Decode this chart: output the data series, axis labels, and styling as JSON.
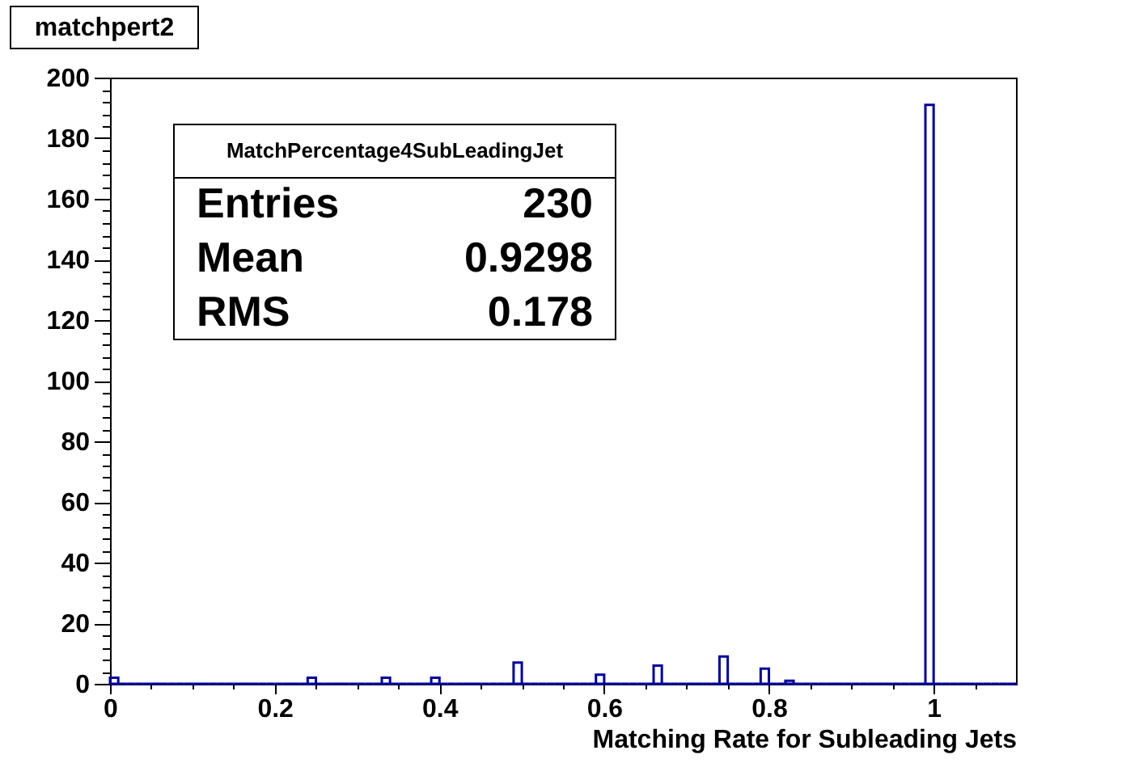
{
  "chart_data": {
    "type": "histogram",
    "title": "matchpert2",
    "xlabel": "Matching Rate for Subleading Jets",
    "annotations": [
      "MatchPercentage4SubLeadingJet",
      "Entries",
      "230",
      "Mean",
      "0.9298",
      "RMS",
      "0.178"
    ],
    "color": "#0000a0",
    "bins": [
      0,
      0.01,
      0.02,
      0.03,
      0.04,
      0.05,
      0.06,
      0.07,
      0.08,
      0.09,
      0.1,
      0.11,
      0.12,
      0.13,
      0.14,
      0.15,
      0.16,
      0.17,
      0.18,
      0.19,
      0.2,
      0.21,
      0.22,
      0.23,
      0.24,
      0.25,
      0.26,
      0.27,
      0.28,
      0.29,
      0.3,
      0.31,
      0.32,
      0.33,
      0.34,
      0.35,
      0.36,
      0.37,
      0.38,
      0.39,
      0.4,
      0.41,
      0.42,
      0.43,
      0.44,
      0.45,
      0.46,
      0.47,
      0.48,
      0.49,
      0.5,
      0.51,
      0.52,
      0.53,
      0.54,
      0.55,
      0.56,
      0.57,
      0.58,
      0.59,
      0.6,
      0.61,
      0.62,
      0.63,
      0.64,
      0.65,
      0.66,
      0.67,
      0.68,
      0.69,
      0.7,
      0.71,
      0.72,
      0.73,
      0.74,
      0.75,
      0.76,
      0.77,
      0.78,
      0.79,
      0.8,
      0.81,
      0.82,
      0.83,
      0.84,
      0.85,
      0.86,
      0.87,
      0.88,
      0.89,
      0.9,
      0.91,
      0.92,
      0.93,
      0.94,
      0.95,
      0.96,
      0.97,
      0.98,
      0.99,
      1,
      1.01,
      1.02,
      1.03,
      1.04,
      1.05,
      1.06,
      1.07,
      1.08,
      1.09,
      1.1
    ],
    "values": [
      2,
      0,
      0,
      0,
      0,
      0,
      0,
      0,
      0,
      0,
      0,
      0,
      0,
      0,
      0,
      0,
      0,
      0,
      0,
      0,
      0,
      0,
      0,
      0,
      2,
      0,
      0,
      0,
      0,
      0,
      0,
      0,
      0,
      2,
      0,
      0,
      0,
      0,
      0,
      2,
      0,
      0,
      0,
      0,
      0,
      0,
      0,
      0,
      0,
      7,
      0,
      0,
      0,
      0,
      0,
      0,
      0,
      0,
      0,
      3,
      0,
      0,
      0,
      0,
      0,
      0,
      6,
      0,
      0,
      0,
      0,
      0,
      0,
      0,
      9,
      0,
      0,
      0,
      0,
      5,
      0,
      0,
      1,
      0,
      0,
      0,
      0,
      0,
      0,
      0,
      0,
      0,
      0,
      0,
      0,
      0,
      0,
      0,
      0,
      191,
      0,
      0,
      0,
      0,
      0,
      0,
      0,
      0,
      0,
      0
    ],
    "xlim": [
      0,
      1.1
    ],
    "xticks": [
      0,
      {
        "value": 0.05,
        "label": null
      },
      {
        "value": 0.1,
        "label": null
      },
      {
        "value": 0.15,
        "label": null
      },
      0.2,
      {
        "value": 0.25,
        "label": null
      },
      {
        "value": 0.3,
        "label": null
      },
      {
        "value": 0.35,
        "label": null
      },
      0.4,
      {
        "value": 0.45,
        "label": null
      },
      {
        "value": 0.5,
        "label": null
      },
      {
        "value": 0.55,
        "label": null
      },
      0.6,
      {
        "value": 0.65,
        "label": null
      },
      {
        "value": 0.7,
        "label": null
      },
      {
        "value": 0.75,
        "label": null
      },
      0.8,
      {
        "value": 0.85,
        "label": null
      },
      {
        "value": 0.9,
        "label": null
      },
      {
        "value": 0.95,
        "label": null
      },
      1,
      {
        "value": 1.05,
        "label": null
      }
    ],
    "ylim": [
      0,
      200
    ],
    "yticks": [
      0,
      {
        "value": 4,
        "label": null
      },
      {
        "value": 8,
        "label": null
      },
      {
        "value": 12,
        "label": null
      },
      {
        "value": 16,
        "label": null
      },
      20,
      {
        "value": 24,
        "label": null
      },
      {
        "value": 28,
        "label": null
      },
      {
        "value": 32,
        "label": null
      },
      {
        "value": 36,
        "label": null
      },
      40,
      {
        "value": 44,
        "label": null
      },
      {
        "value": 48,
        "label": null
      },
      {
        "value": 52,
        "label": null
      },
      {
        "value": 56,
        "label": null
      },
      60,
      {
        "value": 64,
        "label": null
      },
      {
        "value": 68,
        "label": null
      },
      {
        "value": 72,
        "label": null
      },
      {
        "value": 76,
        "label": null
      },
      80,
      {
        "value": 84,
        "label": null
      },
      {
        "value": 88,
        "label": null
      },
      {
        "value": 92,
        "label": null
      },
      {
        "value": 96,
        "label": null
      },
      100,
      {
        "value": 104,
        "label": null
      },
      {
        "value": 108,
        "label": null
      },
      {
        "value": 112,
        "label": null
      },
      {
        "value": 116,
        "label": null
      },
      120,
      {
        "value": 124,
        "label": null
      },
      {
        "value": 128,
        "label": null
      },
      {
        "value": 132,
        "label": null
      },
      {
        "value": 136,
        "label": null
      },
      140,
      {
        "value": 144,
        "label": null
      },
      {
        "value": 148,
        "label": null
      },
      {
        "value": 152,
        "label": null
      },
      {
        "value": 156,
        "label": null
      },
      160,
      {
        "value": 164,
        "label": null
      },
      {
        "value": 168,
        "label": null
      },
      {
        "value": 172,
        "label": null
      },
      {
        "value": 176,
        "label": null
      },
      180,
      {
        "value": 184,
        "label": null
      },
      {
        "value": 188,
        "label": null
      },
      {
        "value": 192,
        "label": null
      },
      {
        "value": 196,
        "label": null
      },
      200
    ]
  }
}
